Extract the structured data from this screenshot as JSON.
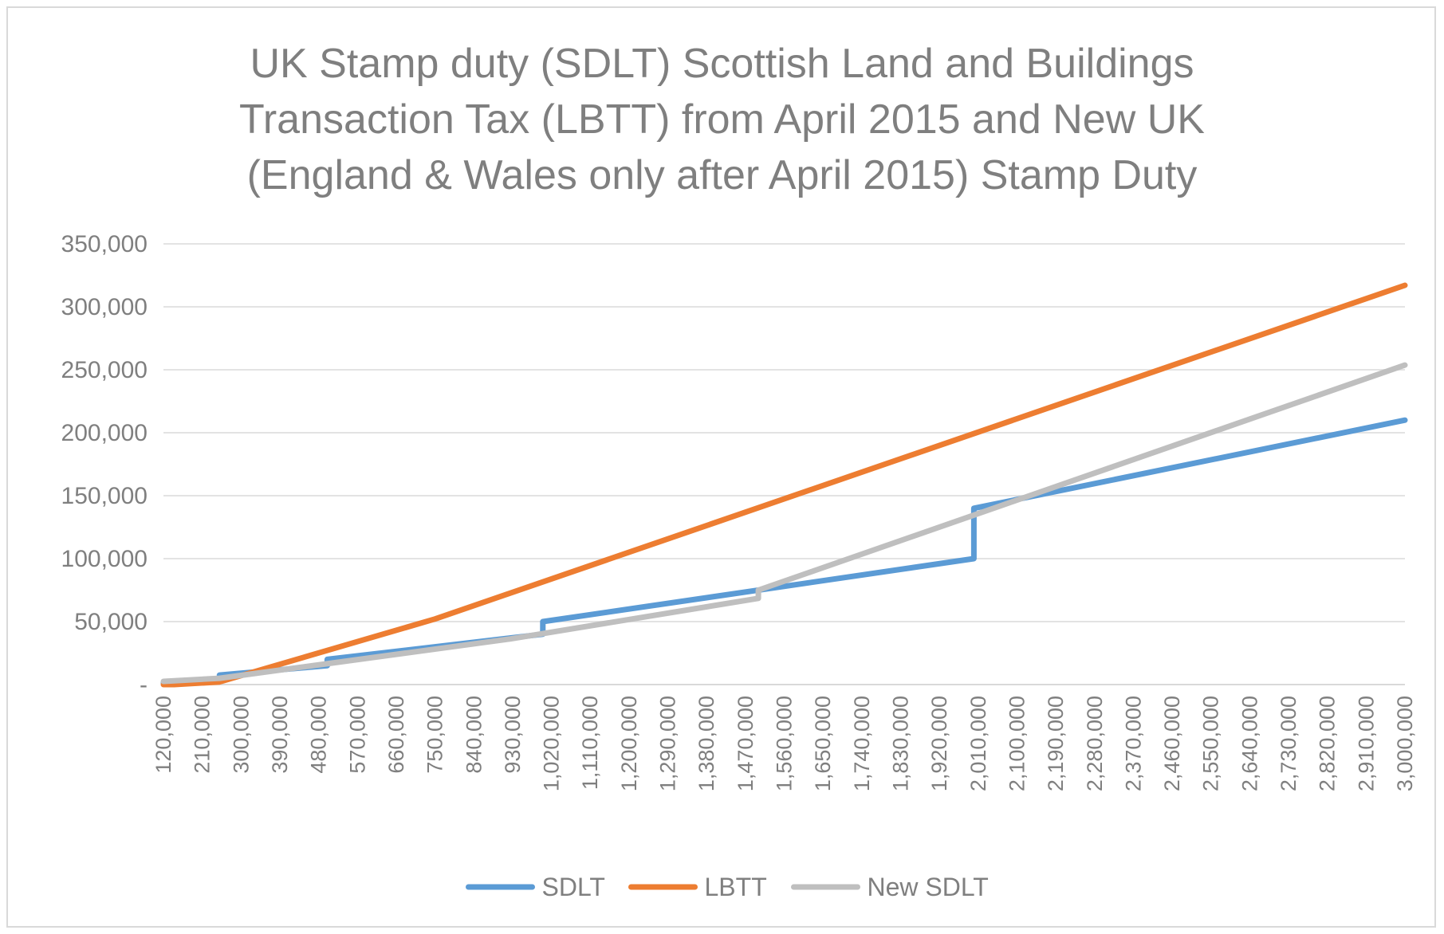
{
  "chart_data": {
    "type": "line",
    "title_lines": [
      "UK Stamp duty (SDLT) Scottish Land and Buildings",
      "Transaction Tax (LBTT) from April 2015 and New UK",
      "(England & Wales only after April 2015) Stamp Duty"
    ],
    "xlabel": "",
    "ylabel": "",
    "ylim": [
      0,
      350000
    ],
    "xlim": [
      120000,
      3000000
    ],
    "y_ticks": [
      0,
      50000,
      100000,
      150000,
      200000,
      250000,
      300000,
      350000
    ],
    "y_tick_labels": [
      "-",
      "50,000",
      "100,000",
      "150,000",
      "200,000",
      "250,000",
      "300,000",
      "350,000"
    ],
    "x_ticks": [
      120000,
      210000,
      300000,
      390000,
      480000,
      570000,
      660000,
      750000,
      840000,
      930000,
      1020000,
      1110000,
      1200000,
      1290000,
      1380000,
      1470000,
      1560000,
      1650000,
      1740000,
      1830000,
      1920000,
      2010000,
      2100000,
      2190000,
      2280000,
      2370000,
      2460000,
      2550000,
      2640000,
      2730000,
      2820000,
      2910000,
      3000000
    ],
    "x_tick_labels": [
      "120,000",
      "210,000",
      "300,000",
      "390,000",
      "480,000",
      "570,000",
      "660,000",
      "750,000",
      "840,000",
      "930,000",
      "1,020,000",
      "1,110,000",
      "1,200,000",
      "1,290,000",
      "1,380,000",
      "1,470,000",
      "1,560,000",
      "1,650,000",
      "1,740,000",
      "1,830,000",
      "1,920,000",
      "2,010,000",
      "2,100,000",
      "2,190,000",
      "2,280,000",
      "2,370,000",
      "2,460,000",
      "2,550,000",
      "2,640,000",
      "2,730,000",
      "2,820,000",
      "2,910,000",
      "3,000,000"
    ],
    "grid": true,
    "legend_position": "bottom",
    "series": [
      {
        "name": "SDLT",
        "color": "#5b9bd5",
        "points": [
          [
            120000,
            1200
          ],
          [
            250000,
            2500
          ],
          [
            250000,
            7500
          ],
          [
            500000,
            15000
          ],
          [
            500000,
            20000
          ],
          [
            1000000,
            40000
          ],
          [
            1000000,
            50000
          ],
          [
            2000000,
            100000
          ],
          [
            2000000,
            140000
          ],
          [
            3000000,
            210000
          ]
        ]
      },
      {
        "name": "LBTT",
        "color": "#ed7d31",
        "points": [
          [
            120000,
            0
          ],
          [
            145000,
            0
          ],
          [
            250000,
            2100
          ],
          [
            325000,
            9600
          ],
          [
            750000,
            52100
          ],
          [
            3000000,
            317100
          ]
        ]
      },
      {
        "name": "New SDLT",
        "color": "#bfbfbf",
        "points": [
          [
            120000,
            2500
          ],
          [
            250000,
            5000
          ],
          [
            925000,
            36250
          ],
          [
            1500000,
            68500
          ],
          [
            1500000,
            75000
          ],
          [
            3000000,
            253750
          ]
        ]
      }
    ]
  }
}
